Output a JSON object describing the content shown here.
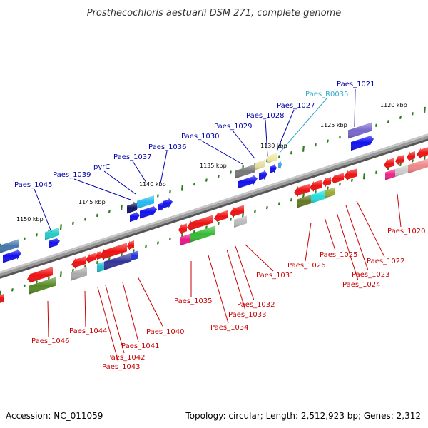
{
  "title": "Prosthecochloris aestuarii DSM 271, complete genome",
  "footer": {
    "accession": "Accession: NC_011059",
    "summary": "Topology: circular; Length: 2,512,923 bp; Genes: 2,312"
  },
  "colors": {
    "backbone": "#8a8a8a",
    "forward_label": "#0000aa",
    "reverse_label": "#cc0000",
    "rna_label": "#33aacc",
    "tick": "#2e7d1e"
  },
  "ticks": [
    "1120 kbp",
    "1125 kbp",
    "1130 kbp",
    "1135 kbp",
    "1140 kbp",
    "1145 kbp",
    "1150 kbp"
  ],
  "forward_labels": [
    "Paes_1021",
    "Paes_R0035",
    "Paes_1027",
    "Paes_1028",
    "Paes_1029",
    "Paes_1030",
    "Paes_1036",
    "Paes_1037",
    "pyrC",
    "Paes_1039",
    "Paes_1045"
  ],
  "reverse_labels": [
    "Paes_1020",
    "Paes_1022",
    "Paes_1023",
    "Paes_1024",
    "Paes_1025",
    "Paes_1026",
    "Paes_1031",
    "Paes_1032",
    "Paes_1033",
    "Paes_1034",
    "Paes_1035",
    "Paes_1040",
    "Paes_1041",
    "Paes_1042",
    "Paes_1043",
    "Paes_1044",
    "Paes_1046"
  ]
}
